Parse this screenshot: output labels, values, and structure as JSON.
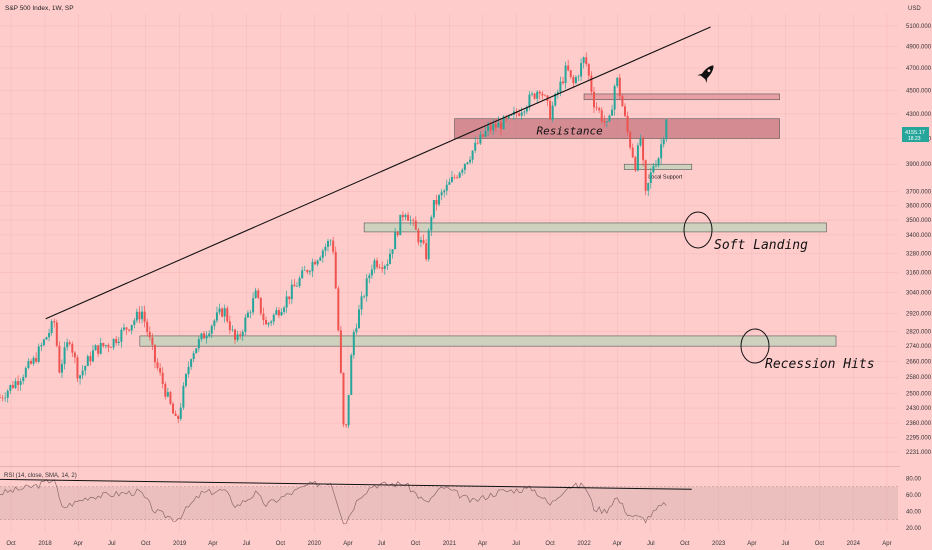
{
  "chart_data": {
    "type": "candlestick",
    "title": "S&P 500 Index, 1W, SP",
    "currency": "USD",
    "price_tick_labels": [
      "5100.000",
      "4900.000",
      "4700.000",
      "4500.000",
      "4300.000",
      "4100.000",
      "3900.000",
      "3700.000",
      "3600.000",
      "3500.000",
      "3400.000",
      "3280.000",
      "3160.000",
      "3040.000",
      "2920.000",
      "2820.000",
      "2740.000",
      "2660.000",
      "2580.000",
      "2500.000",
      "2430.000",
      "2360.000",
      "2295.000",
      "2231.000"
    ],
    "price_tick_values": [
      5100,
      4900,
      4700,
      4500,
      4300,
      4100,
      3900,
      3700,
      3600,
      3500,
      3400,
      3280,
      3160,
      3040,
      2920,
      2820,
      2740,
      2660,
      2580,
      2500,
      2430,
      2360,
      2295,
      2231
    ],
    "price_range": [
      2180,
      5220
    ],
    "time_ticks": [
      "Oct",
      "2018",
      "Apr",
      "Jul",
      "Oct",
      "2019",
      "Apr",
      "Jul",
      "Oct",
      "2020",
      "Apr",
      "Jul",
      "Oct",
      "2021",
      "Apr",
      "Jul",
      "Oct",
      "2022",
      "Apr",
      "Jul",
      "Oct",
      "2023",
      "Apr",
      "Jul",
      "Oct",
      "2024",
      "Apr"
    ],
    "time_range": [
      "2017-09-01",
      "2024-05-01"
    ],
    "last_price": "4155.17",
    "last_change": "18.23",
    "series_close": [
      [
        "2017-09-01",
        2480
      ],
      [
        "2017-10-15",
        2560
      ],
      [
        "2017-12-01",
        2660
      ],
      [
        "2018-01-26",
        2870
      ],
      [
        "2018-02-09",
        2620
      ],
      [
        "2018-03-09",
        2785
      ],
      [
        "2018-04-02",
        2580
      ],
      [
        "2018-05-15",
        2720
      ],
      [
        "2018-07-01",
        2760
      ],
      [
        "2018-08-15",
        2850
      ],
      [
        "2018-09-21",
        2930
      ],
      [
        "2018-10-26",
        2660
      ],
      [
        "2018-12-24",
        2350
      ],
      [
        "2019-02-01",
        2700
      ],
      [
        "2019-04-01",
        2870
      ],
      [
        "2019-05-01",
        2945
      ],
      [
        "2019-06-03",
        2750
      ],
      [
        "2019-07-26",
        3025
      ],
      [
        "2019-08-23",
        2850
      ],
      [
        "2019-10-15",
        2995
      ],
      [
        "2019-12-15",
        3190
      ],
      [
        "2020-02-19",
        3380
      ],
      [
        "2020-03-23",
        2237
      ],
      [
        "2020-04-15",
        2800
      ],
      [
        "2020-06-08",
        3230
      ],
      [
        "2020-07-15",
        3220
      ],
      [
        "2020-09-02",
        3580
      ],
      [
        "2020-10-30",
        3270
      ],
      [
        "2020-11-15",
        3580
      ],
      [
        "2021-01-01",
        3750
      ],
      [
        "2021-02-15",
        3930
      ],
      [
        "2021-04-15",
        4170
      ],
      [
        "2021-06-15",
        4250
      ],
      [
        "2021-08-15",
        4450
      ],
      [
        "2021-09-03",
        4530
      ],
      [
        "2021-10-01",
        4300
      ],
      [
        "2021-11-15",
        4700
      ],
      [
        "2021-12-01",
        4540
      ],
      [
        "2022-01-03",
        4800
      ],
      [
        "2022-01-28",
        4400
      ],
      [
        "2022-03-08",
        4170
      ],
      [
        "2022-03-29",
        4630
      ],
      [
        "2022-05-02",
        4100
      ],
      [
        "2022-05-20",
        3900
      ],
      [
        "2022-06-03",
        4100
      ],
      [
        "2022-06-17",
        3667
      ],
      [
        "2022-07-08",
        3900
      ],
      [
        "2022-07-22",
        3960
      ],
      [
        "2022-08-05",
        4145
      ],
      [
        "2022-08-12",
        4280
      ]
    ],
    "zones": [
      {
        "label": "Resistance",
        "y1": 4100,
        "y2": 4260,
        "x1": "2021-01-15",
        "x2": "2023-06-15"
      },
      {
        "label": "",
        "y1": 4420,
        "y2": 4470,
        "x1": "2022-01-01",
        "x2": "2023-06-15"
      },
      {
        "label": "Local Support",
        "y1": 3860,
        "y2": 3900,
        "x1": "2022-04-20",
        "x2": "2022-10-20"
      },
      {
        "label": "",
        "y1": 3420,
        "y2": 3480,
        "x1": "2020-05-15",
        "x2": "2023-10-20"
      },
      {
        "label": "",
        "y1": 2740,
        "y2": 2795,
        "x1": "2018-09-15",
        "x2": "2023-11-15"
      }
    ],
    "trendline": {
      "from": [
        "2018-01-03",
        2890
      ],
      "to": [
        "2022-12-10",
        5090
      ]
    },
    "annotations": [
      "Soft Landing",
      "Recession Hits"
    ],
    "rsi": {
      "label": "RSI (14, close, SMA, 14, 2)",
      "tick_labels": [
        "80.00",
        "60.00",
        "40.00",
        "20.00"
      ],
      "tick_values": [
        80,
        60,
        40,
        20
      ],
      "band": [
        30,
        70
      ],
      "range": [
        15,
        88
      ],
      "values": [
        [
          "2017-09-01",
          62
        ],
        [
          "2017-12-15",
          72
        ],
        [
          "2018-01-26",
          80
        ],
        [
          "2018-02-15",
          44
        ],
        [
          "2018-05-01",
          58
        ],
        [
          "2018-09-15",
          64
        ],
        [
          "2018-10-26",
          40
        ],
        [
          "2018-12-24",
          30
        ],
        [
          "2019-03-01",
          62
        ],
        [
          "2019-05-01",
          66
        ],
        [
          "2019-06-03",
          46
        ],
        [
          "2019-07-26",
          62
        ],
        [
          "2019-08-23",
          48
        ],
        [
          "2019-12-15",
          72
        ],
        [
          "2020-02-15",
          76
        ],
        [
          "2020-03-23",
          24
        ],
        [
          "2020-05-01",
          58
        ],
        [
          "2020-06-08",
          72
        ],
        [
          "2020-09-02",
          74
        ],
        [
          "2020-10-30",
          50
        ],
        [
          "2020-12-15",
          70
        ],
        [
          "2021-03-05",
          52
        ],
        [
          "2021-05-15",
          64
        ],
        [
          "2021-08-15",
          68
        ],
        [
          "2021-10-01",
          48
        ],
        [
          "2021-11-15",
          70
        ],
        [
          "2022-01-03",
          72
        ],
        [
          "2022-01-28",
          44
        ],
        [
          "2022-03-01",
          40
        ],
        [
          "2022-03-29",
          58
        ],
        [
          "2022-05-02",
          36
        ],
        [
          "2022-06-17",
          30
        ],
        [
          "2022-07-22",
          44
        ],
        [
          "2022-08-12",
          50
        ]
      ],
      "trendline": {
        "from": [
          "2017-09-01",
          79
        ],
        "to": [
          "2022-10-20",
          67
        ]
      }
    }
  }
}
